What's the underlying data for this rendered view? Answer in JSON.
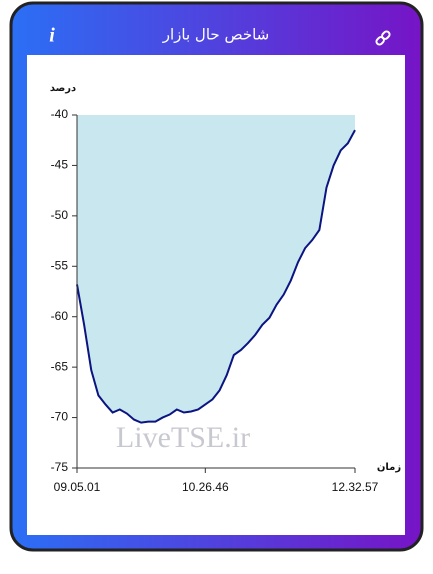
{
  "header": {
    "title": "شاخص حال بازار",
    "info": "i"
  },
  "chart_data": {
    "type": "area",
    "y_label": "درصد",
    "x_label": "زمان",
    "watermark": "LiveTSE.ir",
    "categories": [
      "09.05.01",
      null,
      null,
      null,
      null,
      null,
      null,
      null,
      null,
      null,
      null,
      null,
      null,
      null,
      null,
      null,
      null,
      null,
      "10.26.46",
      null,
      null,
      null,
      null,
      null,
      null,
      null,
      null,
      null,
      null,
      null,
      null,
      null,
      null,
      null,
      null,
      null,
      null,
      null,
      null,
      "12.32.57"
    ],
    "values": [
      -56.8,
      -60.8,
      -65.3,
      -67.8,
      -68.7,
      -69.5,
      -69.2,
      -69.6,
      -70.2,
      -70.5,
      -70.4,
      -70.4,
      -70.0,
      -69.7,
      -69.2,
      -69.5,
      -69.4,
      -69.2,
      -68.7,
      -68.2,
      -67.3,
      -65.8,
      -63.8,
      -63.3,
      -62.6,
      -61.8,
      -60.8,
      -60.1,
      -58.8,
      -57.8,
      -56.4,
      -54.6,
      -53.2,
      -52.4,
      -51.4,
      -47.2,
      -45.0,
      -43.5,
      -42.8,
      -41.5
    ],
    "color": "#0b1480",
    "fill_color": "#c8e7ef",
    "ylim": [
      -75,
      -40
    ],
    "yticks": [
      -40,
      -45,
      -50,
      -55,
      -60,
      -65,
      -70,
      -75
    ]
  }
}
